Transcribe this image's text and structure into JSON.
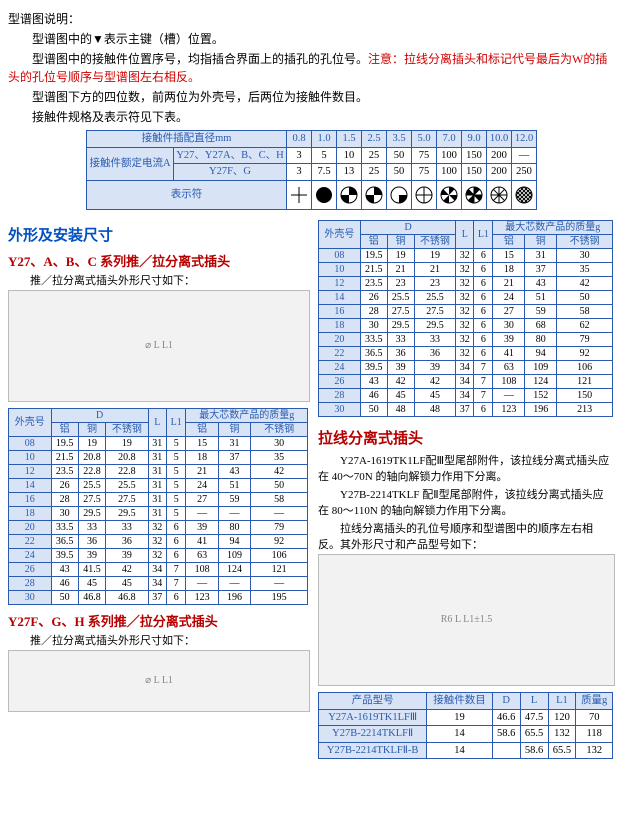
{
  "intro": {
    "p1": "型谱图说明：",
    "p2": "型谱图中的▼表示主键（槽）位置。",
    "p3a": "型谱图中的接触件位置序号，均指插合界面上的插孔的孔位号。",
    "p3b": "注意：拉线分离插头和标记代号最后为W的插头的孔位号顺序与型谱图左右相反。",
    "p4": "型谱图下方的四位数，前两位为外壳号，后两位为接触件数目。",
    "p5": "接触件规格及表示符见下表。"
  },
  "specTable": {
    "h1": "接触件插配直径mm",
    "h2": "接触件额定电流A",
    "rowA_label": "Y27、Y27A、B、C、H",
    "rowB_label": "Y27F、G",
    "symLabel": "表示符",
    "dia": [
      "0.8",
      "1.0",
      "1.5",
      "2.5",
      "3.5",
      "5.0",
      "7.0",
      "9.0",
      "10.0",
      "12.0"
    ],
    "rowA": [
      "3",
      "5",
      "10",
      "25",
      "50",
      "75",
      "100",
      "150",
      "200",
      "—"
    ],
    "rowB": [
      "3",
      "7.5",
      "13",
      "25",
      "50",
      "75",
      "100",
      "150",
      "200",
      "250"
    ]
  },
  "sec1": {
    "title": "外形及安装尺寸",
    "sub1": "Y27、A、B、C 系列推／拉分离式插头",
    "note1": "推／拉分离式插头外形尺寸如下：",
    "sub2": "Y27F、G、H 系列推／拉分离式插头",
    "note2": "推／拉分离式插头外形尺寸如下："
  },
  "dimsHeader": {
    "shell": "外壳号",
    "D": "D",
    "L": "L",
    "L1": "L1",
    "mass": "最大芯数产品的质量g",
    "al": "铝",
    "cu": "铜",
    "ss": "不锈钢"
  },
  "dimsLeft": [
    [
      "08",
      "19.5",
      "19",
      "19",
      "31",
      "5",
      "15",
      "31",
      "30"
    ],
    [
      "10",
      "21.5",
      "20.8",
      "20.8",
      "31",
      "5",
      "18",
      "37",
      "35"
    ],
    [
      "12",
      "23.5",
      "22.8",
      "22.8",
      "31",
      "5",
      "21",
      "43",
      "42"
    ],
    [
      "14",
      "26",
      "25.5",
      "25.5",
      "31",
      "5",
      "24",
      "51",
      "50"
    ],
    [
      "16",
      "28",
      "27.5",
      "27.5",
      "31",
      "5",
      "27",
      "59",
      "58"
    ],
    [
      "18",
      "30",
      "29.5",
      "29.5",
      "31",
      "5",
      "—",
      "—",
      "—"
    ],
    [
      "20",
      "33.5",
      "33",
      "33",
      "32",
      "6",
      "39",
      "80",
      "79"
    ],
    [
      "22",
      "36.5",
      "36",
      "36",
      "32",
      "6",
      "41",
      "94",
      "92"
    ],
    [
      "24",
      "39.5",
      "39",
      "39",
      "32",
      "6",
      "63",
      "109",
      "106"
    ],
    [
      "26",
      "43",
      "41.5",
      "42",
      "34",
      "7",
      "108",
      "124",
      "121"
    ],
    [
      "28",
      "46",
      "45",
      "45",
      "34",
      "7",
      "—",
      "—",
      "—"
    ],
    [
      "30",
      "50",
      "46.8",
      "46.8",
      "37",
      "6",
      "123",
      "196",
      "195"
    ]
  ],
  "dimsRight": [
    [
      "08",
      "19.5",
      "19",
      "19",
      "32",
      "6",
      "15",
      "31",
      "30"
    ],
    [
      "10",
      "21.5",
      "21",
      "21",
      "32",
      "6",
      "18",
      "37",
      "35"
    ],
    [
      "12",
      "23.5",
      "23",
      "23",
      "32",
      "6",
      "21",
      "43",
      "42"
    ],
    [
      "14",
      "26",
      "25.5",
      "25.5",
      "32",
      "6",
      "24",
      "51",
      "50"
    ],
    [
      "16",
      "28",
      "27.5",
      "27.5",
      "32",
      "6",
      "27",
      "59",
      "58"
    ],
    [
      "18",
      "30",
      "29.5",
      "29.5",
      "32",
      "6",
      "30",
      "68",
      "62"
    ],
    [
      "20",
      "33.5",
      "33",
      "33",
      "32",
      "6",
      "39",
      "80",
      "79"
    ],
    [
      "22",
      "36.5",
      "36",
      "36",
      "32",
      "6",
      "41",
      "94",
      "92"
    ],
    [
      "24",
      "39.5",
      "39",
      "39",
      "34",
      "7",
      "63",
      "109",
      "106"
    ],
    [
      "26",
      "43",
      "42",
      "42",
      "34",
      "7",
      "108",
      "124",
      "121"
    ],
    [
      "28",
      "46",
      "45",
      "45",
      "34",
      "7",
      "—",
      "152",
      "150"
    ],
    [
      "30",
      "50",
      "48",
      "48",
      "37",
      "6",
      "123",
      "196",
      "213"
    ]
  ],
  "sec2": {
    "title": "拉线分离式插头",
    "p1": "Y27A-1619TK1LF配Ⅲ型尾部附件，该拉线分离式插头应在 40～70N 的轴向解锁力作用下分离。",
    "p2": "Y27B-2214TKLF 配Ⅱ型尾部附件，该拉线分离式插头应在 80～110N 的轴向解锁力作用下分离。",
    "p3": "拉线分离插头的孔位号顺序和型谱图中的顺序左右相反。其外形尺寸和产品型号如下："
  },
  "prodTable": {
    "h": [
      "产品型号",
      "接触件数目",
      "D",
      "L",
      "L1",
      "质量g"
    ],
    "rows": [
      [
        "Y27A-1619TK1LFⅢ",
        "19",
        "46.6",
        "47.5",
        "120",
        "70"
      ],
      [
        "Y27B-2214TKLFⅡ",
        "14",
        "58.6",
        "65.5",
        "132",
        "118"
      ],
      [
        "Y27B-2214TKLFⅡ-B",
        "14",
        "",
        "58.6",
        "65.5",
        "132"
      ]
    ]
  }
}
